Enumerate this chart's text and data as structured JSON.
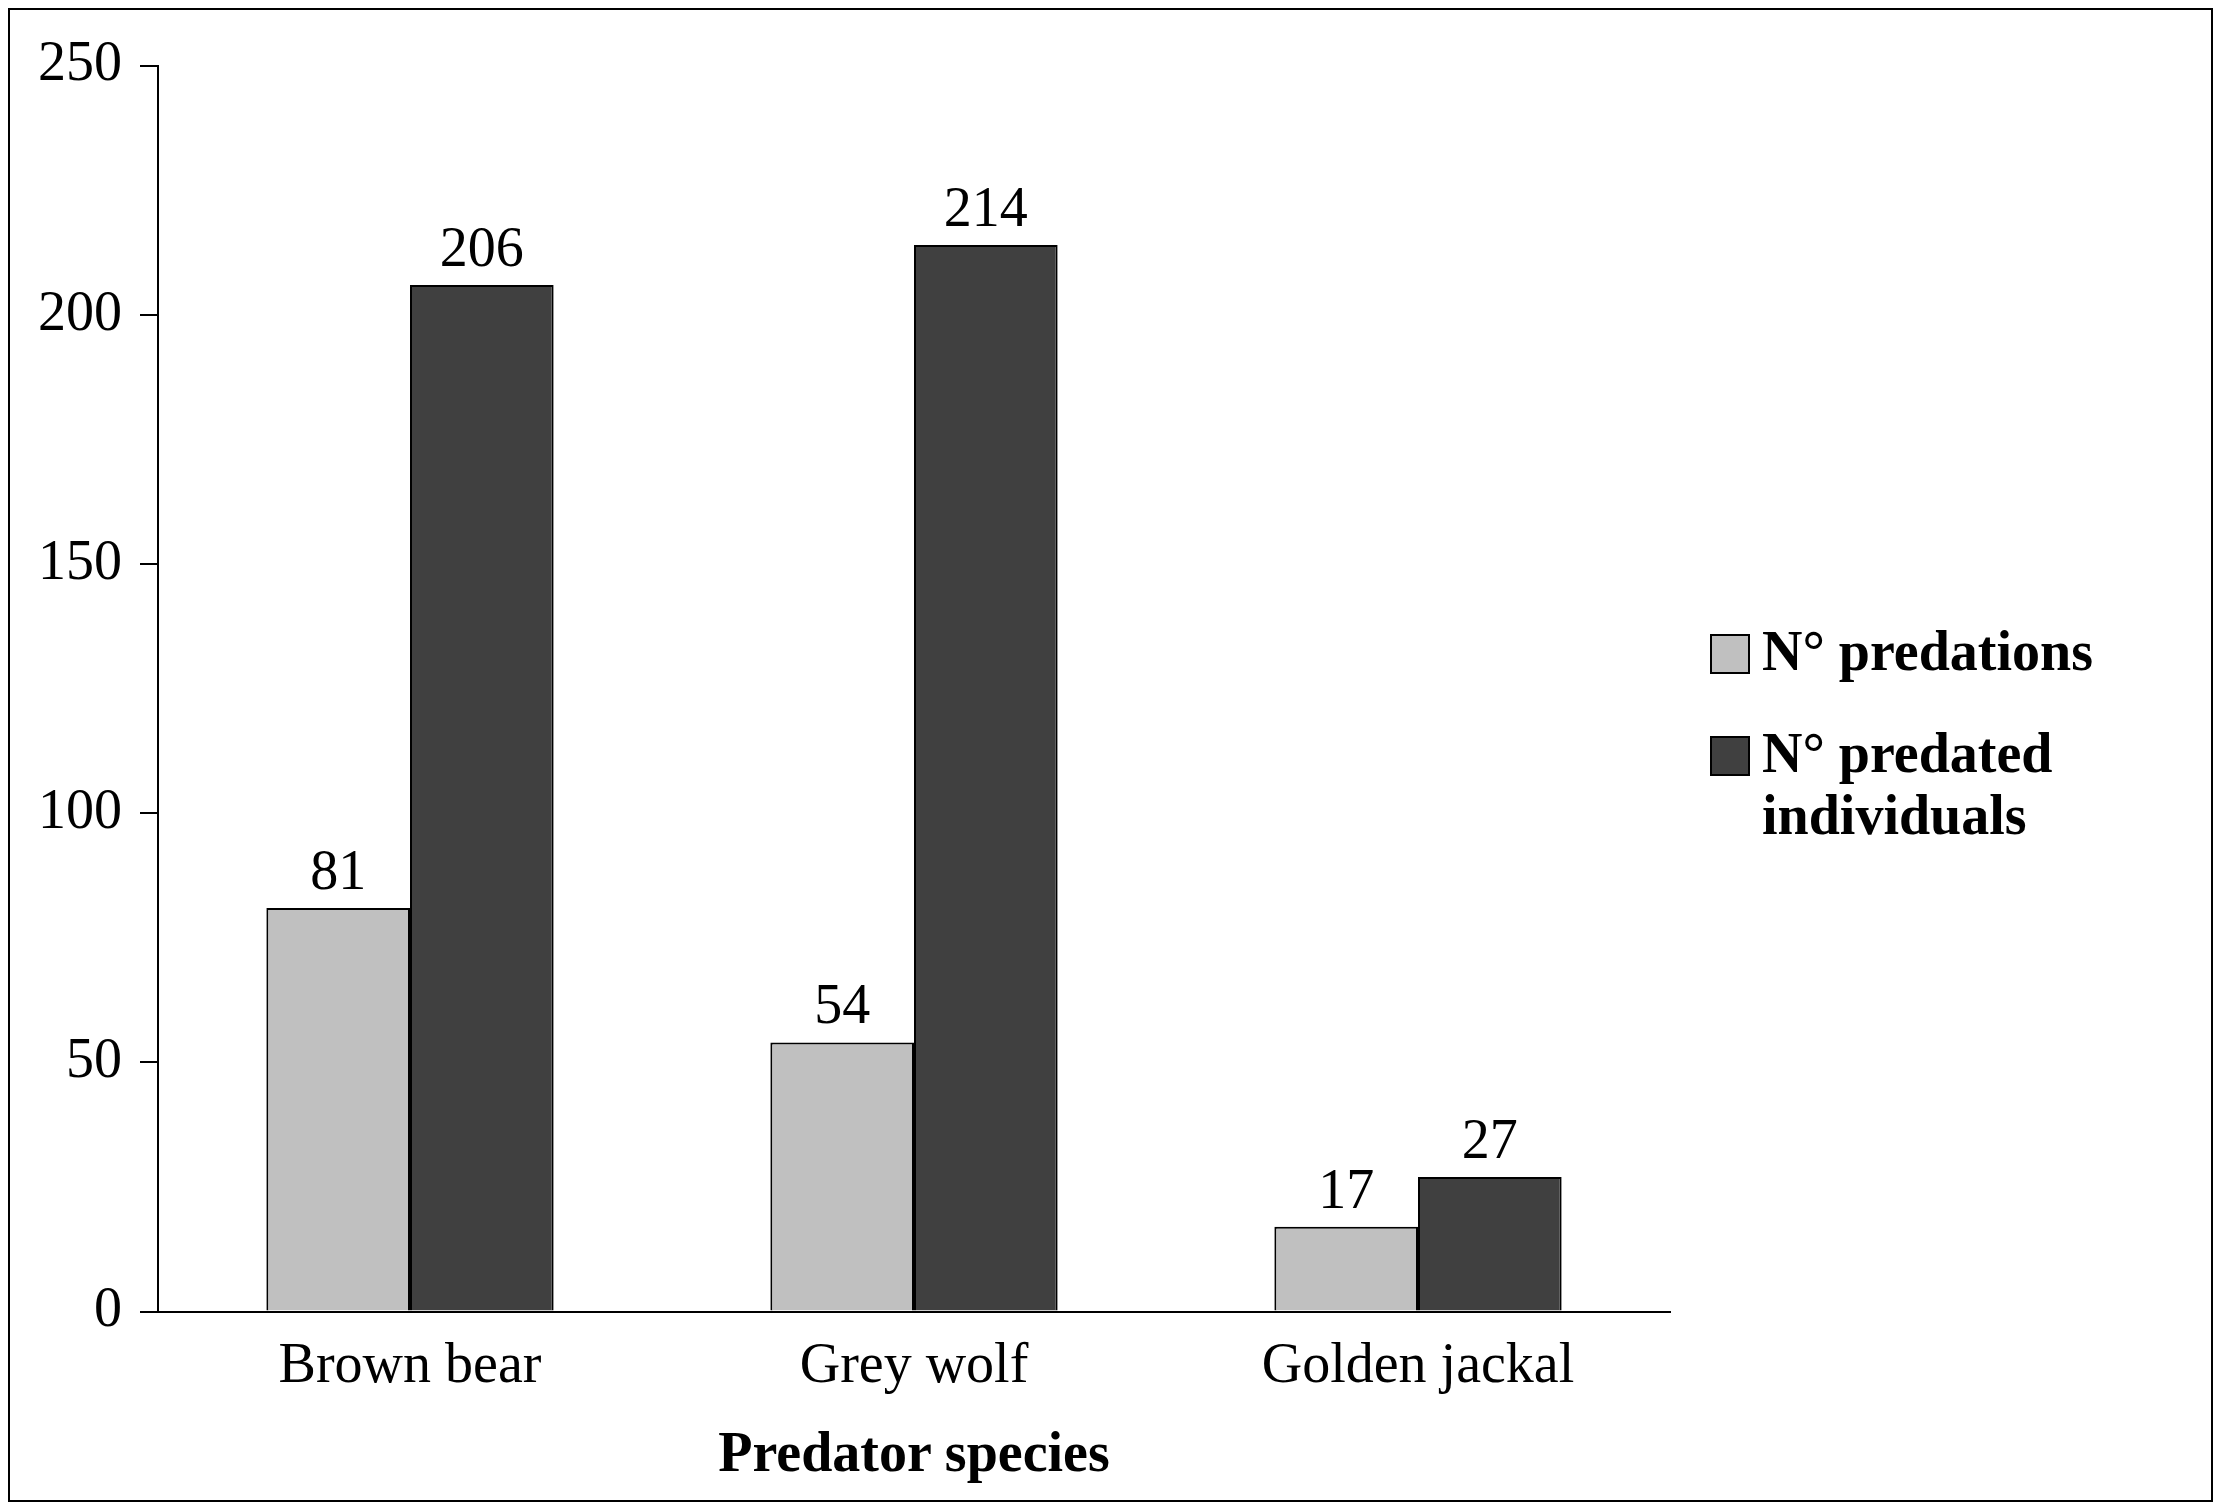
{
  "chart_data": {
    "type": "bar",
    "xlabel": "Predator species",
    "categories": [
      "Brown bear",
      "Grey wolf",
      "Golden jackal"
    ],
    "series": [
      {
        "name": "N° predations",
        "color": "#c0c0c0",
        "values": [
          81,
          54,
          17
        ]
      },
      {
        "name": "N° predated individuals",
        "color": "#404040",
        "values": [
          206,
          214,
          27
        ]
      }
    ],
    "ylim": [
      0,
      250
    ],
    "yticks": [
      0,
      50,
      100,
      150,
      200,
      250
    ],
    "grid": false,
    "legend": "right",
    "data_labels": true
  }
}
